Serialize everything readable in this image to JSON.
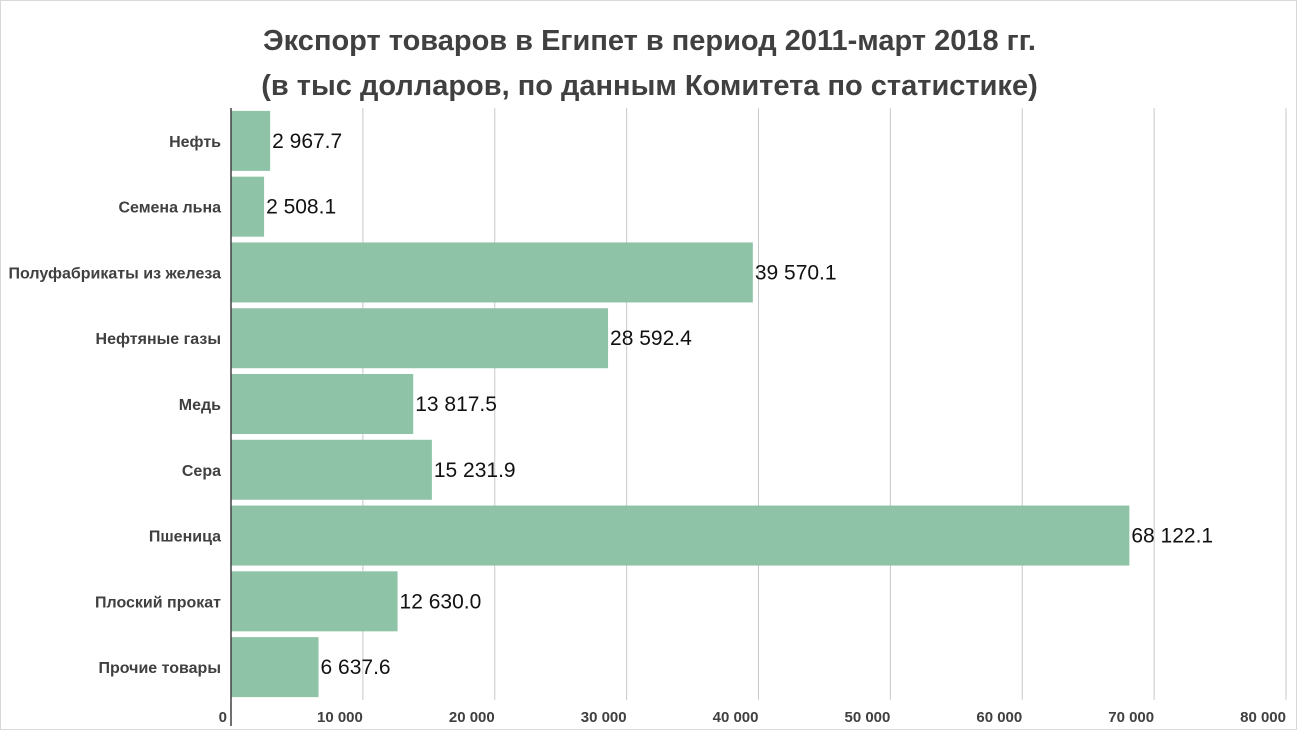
{
  "chart_data": {
    "type": "bar",
    "orientation": "horizontal",
    "title": "Экспорт товаров в Египет в период 2011-март 2018 гг.",
    "subtitle": "(в тыс долларов, по данным Комитета по статистике)",
    "categories": [
      "Нефть",
      "Семена льна",
      "Полуфабрикаты из железа",
      "Нефтяные газы",
      "Медь",
      "Сера",
      "Пшеница",
      "Плоский прокат",
      "Прочие товары"
    ],
    "values": [
      2967.7,
      2508.1,
      39570.1,
      28592.4,
      13817.5,
      15231.9,
      68122.1,
      12630.0,
      6637.6
    ],
    "value_labels": [
      "2 967.7",
      "2 508.1",
      "39 570.1",
      "28 592.4",
      "13 817.5",
      "15 231.9",
      "68 122.1",
      "12 630.0",
      "6 637.6"
    ],
    "x_ticks": [
      0,
      10000,
      20000,
      30000,
      40000,
      50000,
      60000,
      70000,
      80000
    ],
    "x_tick_labels": [
      "0",
      "10 000",
      "20 000",
      "30 000",
      "40 000",
      "50 000",
      "60 000",
      "70 000",
      "80 000"
    ],
    "xlim": [
      0,
      80000
    ],
    "grid": true,
    "legend": "none",
    "bar_color": "#8fc3a7",
    "grid_color": "#c8c8c8",
    "axis_color": "#404040"
  }
}
